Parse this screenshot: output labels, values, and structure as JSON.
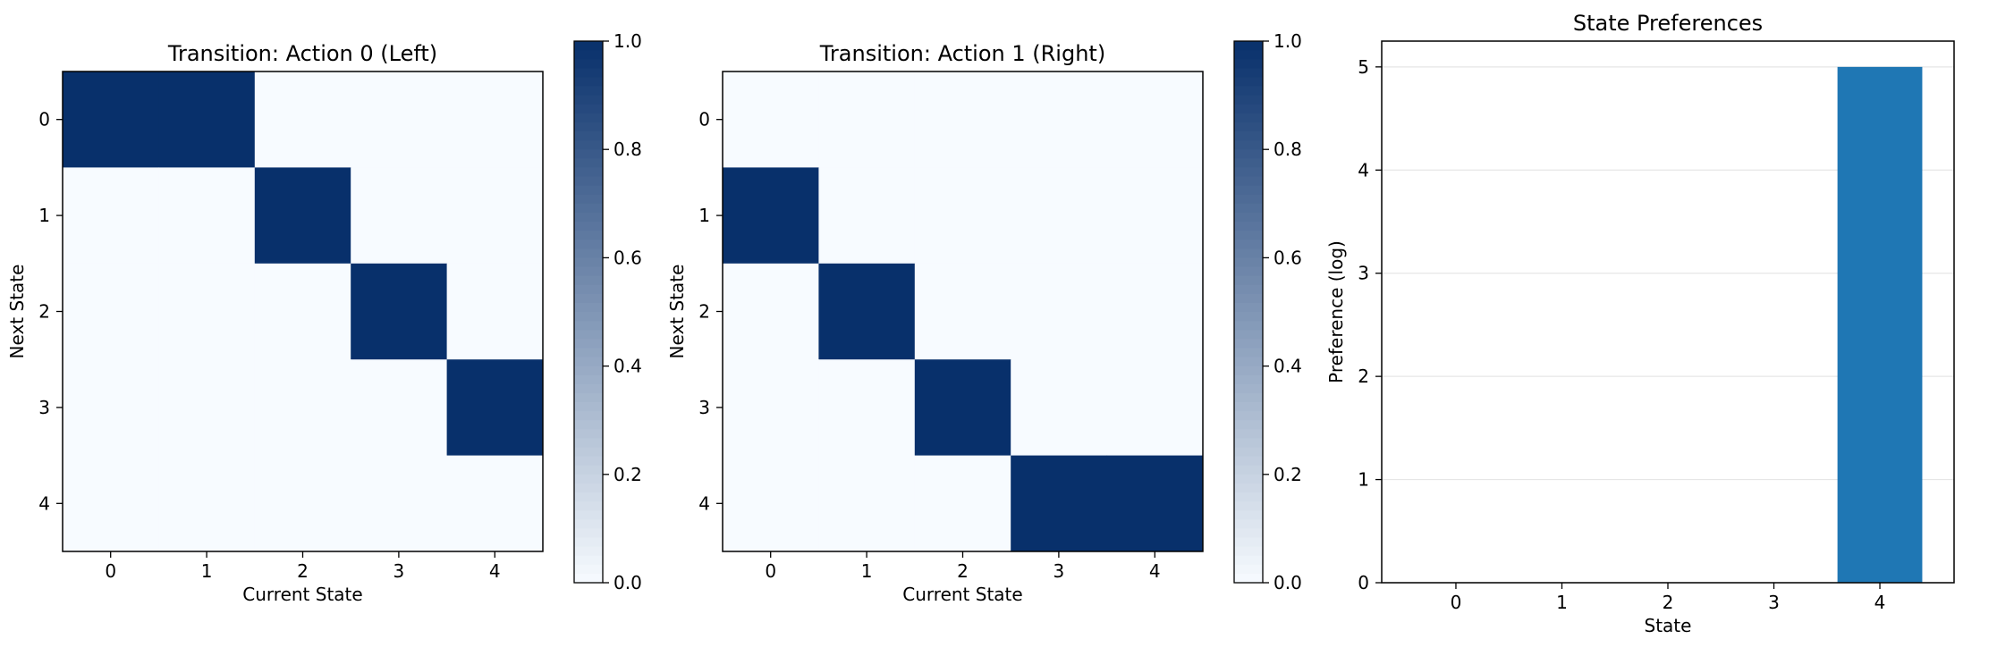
{
  "chart_data": [
    {
      "type": "heatmap",
      "title": "Transition: Action 0 (Left)",
      "xlabel": "Current State",
      "ylabel": "Next State",
      "x_categories": [
        "0",
        "1",
        "2",
        "3",
        "4"
      ],
      "y_categories": [
        "0",
        "1",
        "2",
        "3",
        "4"
      ],
      "matrix": [
        [
          1,
          1,
          0,
          0,
          0
        ],
        [
          0,
          0,
          1,
          0,
          0
        ],
        [
          0,
          0,
          0,
          1,
          0
        ],
        [
          0,
          0,
          0,
          0,
          1
        ],
        [
          0,
          0,
          0,
          0,
          0
        ]
      ],
      "colorscale": "Blues",
      "colormap_low": "#f7fbff",
      "colormap_high": "#08306b",
      "colorbar": {
        "min": 0.0,
        "max": 1.0,
        "ticks": [
          "0.0",
          "0.2",
          "0.4",
          "0.6",
          "0.8",
          "1.0"
        ]
      }
    },
    {
      "type": "heatmap",
      "title": "Transition: Action 1 (Right)",
      "xlabel": "Current State",
      "ylabel": "Next State",
      "x_categories": [
        "0",
        "1",
        "2",
        "3",
        "4"
      ],
      "y_categories": [
        "0",
        "1",
        "2",
        "3",
        "4"
      ],
      "matrix": [
        [
          0,
          0,
          0,
          0,
          0
        ],
        [
          1,
          0,
          0,
          0,
          0
        ],
        [
          0,
          1,
          0,
          0,
          0
        ],
        [
          0,
          0,
          1,
          0,
          0
        ],
        [
          0,
          0,
          0,
          1,
          1
        ]
      ],
      "colorscale": "Blues",
      "colormap_low": "#f7fbff",
      "colormap_high": "#08306b",
      "colorbar": {
        "min": 0.0,
        "max": 1.0,
        "ticks": [
          "0.0",
          "0.2",
          "0.4",
          "0.6",
          "0.8",
          "1.0"
        ]
      }
    },
    {
      "type": "bar",
      "title": "State Preferences",
      "xlabel": "State",
      "ylabel": "Preference (log)",
      "categories": [
        "0",
        "1",
        "2",
        "3",
        "4"
      ],
      "values": [
        0,
        0,
        0,
        0,
        5
      ],
      "ylim": [
        0,
        5.25
      ],
      "yticks": [
        "0",
        "1",
        "2",
        "3",
        "4",
        "5"
      ],
      "grid": "y",
      "bar_color": "#1f77b4"
    }
  ]
}
